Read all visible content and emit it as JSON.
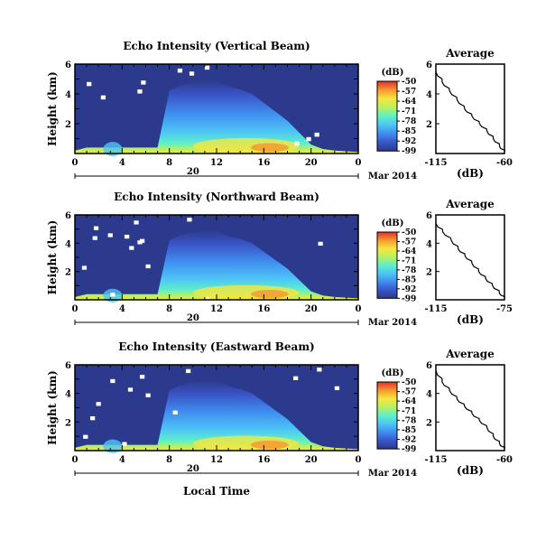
{
  "figure": {
    "date_label": "Mar 2014",
    "xlabel": "Local Time",
    "ylabel": "Height (km)",
    "colorbar_unit": "(dB)",
    "colorbar_ticks": [
      "-50",
      "-57",
      "-64",
      "-71",
      "-78",
      "-85",
      "-92",
      "-99"
    ],
    "avg_title": "Average",
    "avg_xlabel": "(dB)",
    "x_tick_labels": [
      "0",
      "4",
      "8",
      "12",
      "16",
      "20",
      "0"
    ],
    "day_label": "20",
    "y_tick_labels": [
      "2",
      "4",
      "6"
    ]
  },
  "colors": {
    "colormap": [
      "#2b3a8c",
      "#3a55c8",
      "#3f8ef0",
      "#4ec5f5",
      "#5ef0c8",
      "#b8f060",
      "#f5e640",
      "#f59a30",
      "#e0302a"
    ],
    "background": "#2b3a8c",
    "line": "#000000"
  },
  "chart_data": [
    {
      "type": "heatmap",
      "title": "Echo Intensity (Vertical Beam)",
      "x": [
        0,
        4,
        8,
        12,
        16,
        20,
        24
      ],
      "x_tick_labels": [
        "0",
        "4",
        "8",
        "12",
        "16",
        "20",
        "0"
      ],
      "xlim": [
        0,
        24
      ],
      "ylim": [
        0,
        6
      ],
      "y_ticks": [
        2,
        4,
        6
      ],
      "zlim": [
        -99,
        -50
      ],
      "gaps": [
        [
          8.7,
          5.7
        ],
        [
          9.7,
          5.5
        ],
        [
          2.2,
          3.9
        ],
        [
          5.3,
          4.3
        ],
        [
          5.6,
          4.9
        ],
        [
          1.0,
          4.8
        ],
        [
          11.0,
          5.9
        ],
        [
          20.3,
          1.4
        ],
        [
          19.6,
          1.1
        ],
        [
          18.6,
          0.8
        ]
      ],
      "avg_profile": {
        "title": "Average",
        "x": [
          -60,
          -64,
          -69,
          -74,
          -80,
          -86,
          -92,
          -98,
          -104,
          -110,
          -115
        ],
        "y": [
          0.1,
          0.5,
          1.0,
          1.5,
          2.0,
          2.5,
          3.0,
          3.6,
          4.2,
          4.8,
          5.5
        ],
        "xlim": [
          -115,
          -60
        ],
        "x_tick_labels": [
          "-115",
          "-60"
        ],
        "ylim": [
          0,
          6
        ],
        "y_ticks": [
          2,
          4,
          6
        ]
      }
    },
    {
      "type": "heatmap",
      "title": "Echo Intensity (Northward Beam)",
      "x": [
        0,
        4,
        8,
        12,
        16,
        20,
        24
      ],
      "x_tick_labels": [
        "0",
        "4",
        "8",
        "12",
        "16",
        "20",
        "0"
      ],
      "xlim": [
        0,
        24
      ],
      "ylim": [
        0,
        6
      ],
      "y_ticks": [
        2,
        4,
        6
      ],
      "zlim": [
        -99,
        -50
      ],
      "gaps": [
        [
          1.5,
          4.5
        ],
        [
          1.6,
          5.2
        ],
        [
          2.8,
          4.7
        ],
        [
          4.2,
          4.6
        ],
        [
          4.6,
          3.8
        ],
        [
          5.3,
          4.2
        ],
        [
          5.0,
          5.6
        ],
        [
          5.5,
          4.3
        ],
        [
          9.5,
          5.8
        ],
        [
          0.6,
          2.4
        ],
        [
          3.0,
          0.5
        ],
        [
          20.6,
          4.1
        ],
        [
          6.0,
          2.5
        ],
        [
          11.0,
          0.2
        ]
      ],
      "avg_profile": {
        "title": "Average",
        "x": [
          -75,
          -78,
          -82,
          -86,
          -90,
          -94,
          -98,
          -102,
          -106,
          -111,
          -115
        ],
        "y": [
          0.1,
          0.5,
          1.0,
          1.5,
          2.0,
          2.6,
          3.1,
          3.6,
          4.2,
          4.8,
          5.4
        ],
        "xlim": [
          -115,
          -75
        ],
        "x_tick_labels": [
          "-115",
          "-75"
        ],
        "ylim": [
          0,
          6
        ],
        "y_ticks": [
          2,
          4,
          6
        ]
      }
    },
    {
      "type": "heatmap",
      "title": "Echo Intensity (Eastward Beam)",
      "x": [
        0,
        4,
        8,
        12,
        16,
        20,
        24
      ],
      "x_tick_labels": [
        "0",
        "4",
        "8",
        "12",
        "16",
        "20",
        "0"
      ],
      "xlim": [
        0,
        24
      ],
      "ylim": [
        0,
        6
      ],
      "y_ticks": [
        2,
        4,
        6
      ],
      "zlim": [
        -99,
        -50
      ],
      "gaps": [
        [
          3.0,
          5.0
        ],
        [
          4.5,
          4.4
        ],
        [
          5.5,
          5.3
        ],
        [
          6.0,
          4.0
        ],
        [
          1.8,
          3.4
        ],
        [
          1.3,
          2.4
        ],
        [
          0.7,
          1.1
        ],
        [
          9.4,
          5.7
        ],
        [
          18.5,
          5.2
        ],
        [
          20.5,
          5.8
        ],
        [
          22.0,
          4.5
        ],
        [
          4.0,
          0.6
        ],
        [
          8.3,
          2.8
        ]
      ],
      "avg_profile": {
        "title": "Average",
        "x": [
          -60,
          -64,
          -69,
          -74,
          -80,
          -86,
          -92,
          -98,
          -104,
          -110,
          -115
        ],
        "y": [
          0.1,
          0.5,
          1.0,
          1.6,
          2.1,
          2.6,
          3.1,
          3.6,
          4.2,
          4.8,
          5.6
        ],
        "xlim": [
          -115,
          -60
        ],
        "x_tick_labels": [
          "-115",
          "-60"
        ],
        "ylim": [
          0,
          6
        ],
        "y_ticks": [
          2,
          4,
          6
        ]
      }
    }
  ]
}
